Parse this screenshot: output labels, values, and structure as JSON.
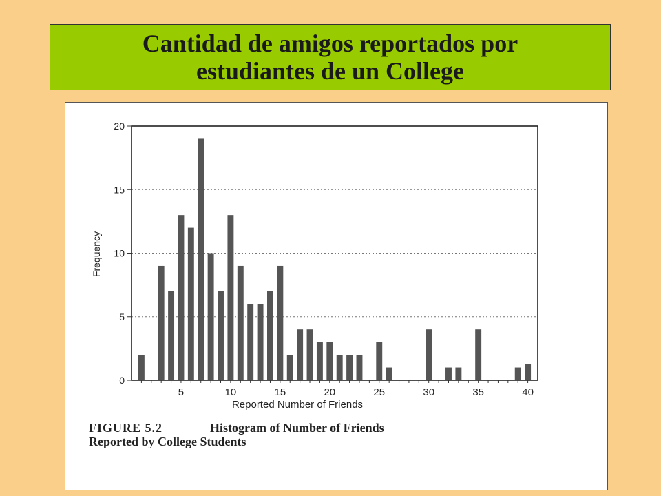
{
  "slide": {
    "title": "Cantidad de amigos reportados por estudiantes de un College",
    "background_color": "#f9cf8a",
    "banner_color": "#99cc00"
  },
  "figure": {
    "number_label": "FIGURE 5.2",
    "caption_line1": "Histogram of Number of Friends",
    "caption_line2": "Reported by College Students"
  },
  "chart_data": {
    "type": "bar",
    "xlabel": "Reported Number of Friends",
    "ylabel": "Frequency",
    "xlim": [
      0,
      41
    ],
    "ylim": [
      0,
      20
    ],
    "x_ticks": [
      5,
      10,
      15,
      20,
      25,
      30,
      35,
      40
    ],
    "y_ticks": [
      0,
      5,
      10,
      15,
      20
    ],
    "gridlines": "dotted horizontal at 5, 10, 15",
    "bar_color": "#555555",
    "x": [
      1,
      2,
      3,
      4,
      5,
      6,
      7,
      8,
      9,
      10,
      11,
      12,
      13,
      14,
      15,
      16,
      17,
      18,
      19,
      20,
      21,
      22,
      23,
      24,
      25,
      26,
      27,
      28,
      29,
      30,
      31,
      32,
      33,
      34,
      35,
      36,
      37,
      38,
      39,
      40
    ],
    "values": [
      2,
      0,
      9,
      7,
      13,
      12,
      19,
      10,
      7,
      13,
      9,
      6,
      6,
      7,
      9,
      2,
      4,
      4,
      3,
      3,
      2,
      2,
      2,
      0,
      3,
      1,
      0,
      0,
      0,
      4,
      0,
      1,
      1,
      0,
      4,
      0,
      0,
      0,
      1,
      1.3
    ]
  }
}
